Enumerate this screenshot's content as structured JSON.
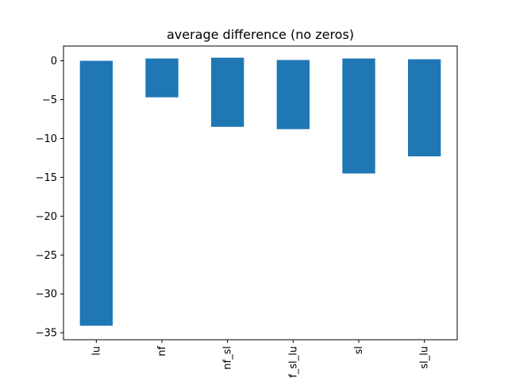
{
  "chart_data": {
    "type": "bar",
    "title": "average difference (no zeros)",
    "xlabel": "",
    "ylabel": "",
    "categories": [
      "lu",
      "nf",
      "nf_sl",
      "f_sl_lu",
      "sl",
      "sl_lu"
    ],
    "bar_tops": [
      0.0,
      0.3,
      0.4,
      0.1,
      0.3,
      0.2
    ],
    "bar_bottoms": [
      -34.1,
      -4.7,
      -8.5,
      -8.8,
      -14.5,
      -12.3
    ],
    "ylim": [
      -35.9,
      1.9
    ],
    "yticks": [
      0,
      -5,
      -10,
      -15,
      -20,
      -25,
      -30,
      -35
    ],
    "ytick_labels": [
      "0",
      "−5",
      "−10",
      "−15",
      "−20",
      "−25",
      "−30",
      "−35"
    ],
    "grid": false,
    "legend": "none",
    "bar_color": "#1f77b4"
  }
}
